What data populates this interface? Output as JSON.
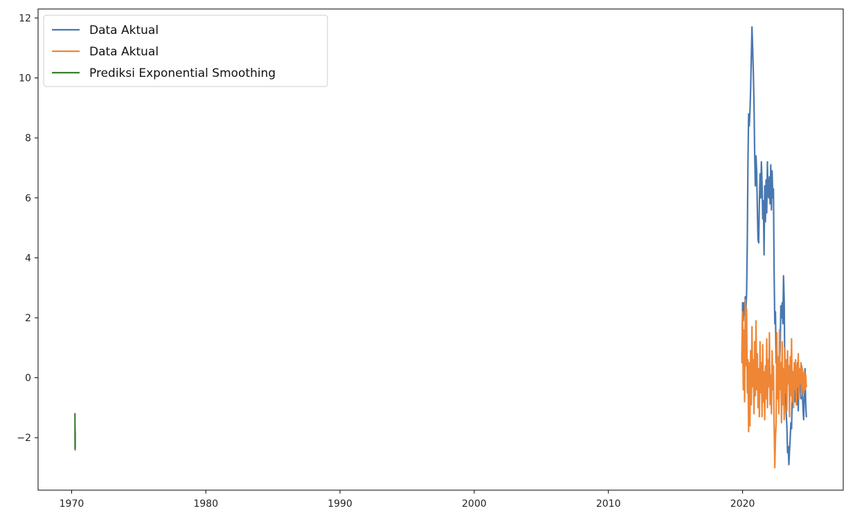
{
  "chart_data": {
    "type": "line",
    "title": "",
    "xlabel": "",
    "ylabel": "",
    "x_axis_kind": "year",
    "xlim": [
      1967.5,
      2027.5
    ],
    "ylim": [
      -3.75,
      12.3
    ],
    "x_ticks": [
      1970,
      1980,
      1990,
      2000,
      2010,
      2020
    ],
    "x_tick_labels": [
      "1970",
      "1980",
      "1990",
      "2000",
      "2010",
      "2020"
    ],
    "y_ticks": [
      -2,
      0,
      2,
      4,
      6,
      8,
      10,
      12
    ],
    "y_tick_labels": [
      "−2",
      "0",
      "2",
      "4",
      "6",
      "8",
      "10",
      "12"
    ],
    "grid": false,
    "legend_position": "upper-left",
    "series": [
      {
        "name": "Data Aktual",
        "color": "#4878b0",
        "x": [
          2019.95,
          2020.0,
          2020.05,
          2020.1,
          2020.15,
          2020.2,
          2020.25,
          2020.3,
          2020.35,
          2020.4,
          2020.45,
          2020.5,
          2020.55,
          2020.6,
          2020.65,
          2020.7,
          2020.75,
          2020.8,
          2020.85,
          2020.9,
          2020.95,
          2021.0,
          2021.05,
          2021.1,
          2021.15,
          2021.2,
          2021.25,
          2021.3,
          2021.35,
          2021.4,
          2021.45,
          2021.5,
          2021.55,
          2021.6,
          2021.65,
          2021.7,
          2021.75,
          2021.8,
          2021.85,
          2021.9,
          2021.95,
          2022.0,
          2022.05,
          2022.1,
          2022.15,
          2022.2,
          2022.25,
          2022.3,
          2022.35,
          2022.4,
          2022.45,
          2022.5,
          2022.55,
          2022.6,
          2022.65,
          2022.7,
          2022.75,
          2022.8,
          2022.85,
          2022.9,
          2022.95,
          2023.0,
          2023.05,
          2023.1,
          2023.15,
          2023.2,
          2023.25,
          2023.3,
          2023.35,
          2023.4,
          2023.45,
          2023.5,
          2023.55,
          2023.6,
          2023.65,
          2023.7,
          2023.75,
          2023.8,
          2023.85,
          2023.9,
          2023.95,
          2024.0,
          2024.05,
          2024.1,
          2024.15,
          2024.2,
          2024.25,
          2024.3,
          2024.35,
          2024.4,
          2024.45,
          2024.5,
          2024.55,
          2024.6,
          2024.65,
          2024.7,
          2024.75
        ],
        "y": [
          0.6,
          2.5,
          1.9,
          2.5,
          2.1,
          2.7,
          2.3,
          2.8,
          4.5,
          7.2,
          8.8,
          8.4,
          8.9,
          9.6,
          10.7,
          11.7,
          11.0,
          10.2,
          9.2,
          7.5,
          6.4,
          7.4,
          6.9,
          5.6,
          4.6,
          4.5,
          5.8,
          6.8,
          6.0,
          7.2,
          6.5,
          5.3,
          5.9,
          4.1,
          6.4,
          5.2,
          6.6,
          5.5,
          7.2,
          6.1,
          6.0,
          6.7,
          5.8,
          7.1,
          5.6,
          6.9,
          6.0,
          6.3,
          3.5,
          1.8,
          2.2,
          0.5,
          0.9,
          -0.5,
          0.1,
          -0.8,
          0.4,
          1.0,
          2.4,
          2.0,
          2.5,
          1.8,
          3.4,
          2.6,
          0.2,
          -0.5,
          -1.2,
          -1.6,
          -2.5,
          -2.3,
          -2.9,
          -2.4,
          -2.0,
          -1.5,
          -1.7,
          -0.5,
          0.2,
          -0.6,
          0.3,
          -0.8,
          0.4,
          -0.2,
          -0.9,
          0.5,
          -1.1,
          0.2,
          -0.3,
          0.1,
          -0.7,
          0.4,
          -0.5,
          -1.0,
          -1.4,
          -0.6,
          0.3,
          -0.8,
          -1.3
        ]
      },
      {
        "name": "Data Aktual",
        "color": "#ef8636",
        "x": [
          2019.95,
          2020.0,
          2020.05,
          2020.1,
          2020.15,
          2020.2,
          2020.25,
          2020.3,
          2020.35,
          2020.4,
          2020.45,
          2020.5,
          2020.55,
          2020.6,
          2020.65,
          2020.7,
          2020.75,
          2020.8,
          2020.85,
          2020.9,
          2020.95,
          2021.0,
          2021.05,
          2021.1,
          2021.15,
          2021.2,
          2021.25,
          2021.3,
          2021.35,
          2021.4,
          2021.45,
          2021.5,
          2021.55,
          2021.6,
          2021.65,
          2021.7,
          2021.75,
          2021.8,
          2021.85,
          2021.9,
          2021.95,
          2022.0,
          2022.05,
          2022.1,
          2022.15,
          2022.2,
          2022.25,
          2022.3,
          2022.35,
          2022.4,
          2022.45,
          2022.5,
          2022.55,
          2022.6,
          2022.65,
          2022.7,
          2022.75,
          2022.8,
          2022.85,
          2022.9,
          2022.95,
          2023.0,
          2023.05,
          2023.1,
          2023.15,
          2023.2,
          2023.25,
          2023.3,
          2023.35,
          2023.4,
          2023.45,
          2023.5,
          2023.55,
          2023.6,
          2023.65,
          2023.7,
          2023.75,
          2023.8,
          2023.85,
          2023.9,
          2023.95,
          2024.0,
          2024.05,
          2024.1,
          2024.15,
          2024.2,
          2024.25,
          2024.3,
          2024.35,
          2024.4,
          2024.45,
          2024.5,
          2024.55,
          2024.6,
          2024.65,
          2024.7,
          2024.75
        ],
        "y": [
          0.5,
          2.2,
          -0.4,
          1.6,
          -0.8,
          2.6,
          0.4,
          2.3,
          -0.5,
          0.6,
          -1.8,
          0.5,
          -1.6,
          0.9,
          -0.9,
          1.7,
          -0.3,
          0.6,
          -1.2,
          1.2,
          -0.6,
          1.9,
          -0.4,
          0.8,
          -1.0,
          0.3,
          -1.3,
          1.2,
          -0.5,
          0.5,
          -1.3,
          1.1,
          -0.8,
          0.2,
          -1.4,
          0.4,
          -0.7,
          1.3,
          -1.0,
          0.6,
          -0.3,
          1.5,
          -0.9,
          0.1,
          -1.2,
          0.9,
          -0.4,
          0.4,
          -1.6,
          -3.0,
          -2.0,
          -1.5,
          1.5,
          -0.7,
          0.7,
          -1.2,
          1.6,
          -0.4,
          0.5,
          -1.5,
          1.2,
          -0.9,
          0.3,
          -1.4,
          1.0,
          -0.5,
          0.6,
          -1.1,
          0.9,
          -0.2,
          0.4,
          -1.3,
          0.7,
          -0.6,
          1.3,
          -0.8,
          0.2,
          -1.0,
          0.5,
          -0.4,
          0.6,
          -0.9,
          0.4,
          -0.3,
          0.8,
          -0.7,
          0.3,
          -0.2,
          0.5,
          -0.6,
          0.3,
          0.0,
          -0.5,
          0.2,
          -0.4,
          0.1,
          -0.3
        ]
      },
      {
        "name": "Prediksi Exponential Smoothing",
        "color": "#3a7d2c",
        "x": [
          1970.25,
          1970.252,
          1970.254,
          1970.256,
          1970.258,
          1970.26,
          1970.262,
          1970.264,
          1970.266,
          1970.268
        ],
        "y": [
          -1.2,
          -2.1,
          -1.6,
          -2.3,
          -1.7,
          -2.4,
          -1.9,
          -2.2,
          -1.8,
          -2.35
        ]
      }
    ]
  }
}
